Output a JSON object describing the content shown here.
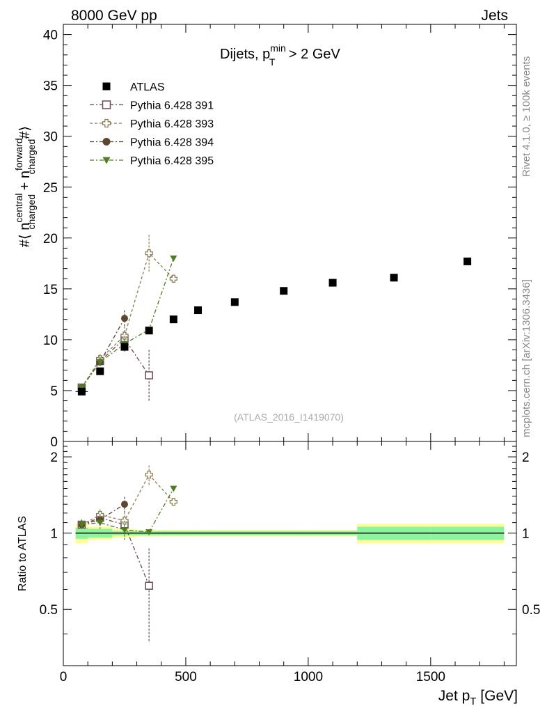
{
  "header": {
    "left": "8000 GeV pp",
    "right": "Jets"
  },
  "side_labels": {
    "rivet": "Rivet 4.1.0, ≥ 100k events",
    "mcplots": "mcplots.cern.ch [arXiv:1306.3436]"
  },
  "chart_data": {
    "type": "scatter",
    "title": "Dijets, p_T^min > 2 GeV",
    "watermark": "(ATLAS_2016_I1419070)",
    "xlabel": "Jet p_T [GeV]",
    "ylabel": "#⟨ n_charged^central + n_charged^forward #⟩",
    "ratio_ylabel": "Ratio to ATLAS",
    "xlim": [
      0,
      1850
    ],
    "ylim": [
      0,
      41
    ],
    "ratio_ylim": [
      0.3,
      2.3
    ],
    "x_ticks": [
      "0",
      "500",
      "1000",
      "1500"
    ],
    "y_ticks": [
      "0",
      "5",
      "10",
      "15",
      "20",
      "25",
      "30",
      "35",
      "40"
    ],
    "ratio_ticks": [
      "0.5",
      "1",
      "2"
    ],
    "legend_position": "top-left",
    "data": {
      "name": "ATLAS",
      "x": [
        75,
        150,
        250,
        350,
        450,
        550,
        700,
        900,
        1100,
        1350,
        1650
      ],
      "xlow": [
        50,
        100,
        200,
        300,
        400,
        500,
        600,
        800,
        1000,
        1200,
        1500
      ],
      "xhigh": [
        100,
        200,
        300,
        400,
        500,
        600,
        800,
        1000,
        1200,
        1500,
        1800
      ],
      "y": [
        4.9,
        6.9,
        9.3,
        10.9,
        12.0,
        12.9,
        13.7,
        14.8,
        15.6,
        16.1,
        17.7
      ],
      "ratio_band_inner": [
        0.05,
        0.04,
        0.02,
        0.02,
        0.02,
        0.02,
        0.02,
        0.02,
        0.02,
        0.06,
        0.06
      ],
      "ratio_band_outer": [
        0.09,
        0.06,
        0.04,
        0.03,
        0.03,
        0.03,
        0.03,
        0.03,
        0.03,
        0.09,
        0.09
      ]
    },
    "series": [
      {
        "name": "Pythia 6.428 391",
        "color": "#6b4856",
        "marker": "open-square",
        "dash": "6,3,2,3",
        "x": [
          75,
          150,
          250,
          350
        ],
        "values": [
          5.3,
          7.9,
          10.1,
          6.5
        ],
        "errors": [
          0.3,
          0.5,
          0.8,
          2.5
        ],
        "ratio": [
          1.08,
          1.15,
          1.08,
          0.62
        ],
        "ratio_errors": [
          0.05,
          0.06,
          0.09,
          0.25
        ]
      },
      {
        "name": "Pythia 6.428 393",
        "color": "#8c7d52",
        "marker": "open-cross",
        "dash": "4,3",
        "x": [
          75,
          150,
          250,
          350,
          450
        ],
        "values": [
          5.3,
          8.1,
          10.4,
          18.5,
          16.0
        ],
        "errors": [
          0.3,
          0.5,
          0.9,
          1.8,
          0.4
        ],
        "ratio": [
          1.08,
          1.18,
          1.12,
          1.7,
          1.33
        ],
        "ratio_errors": [
          0.05,
          0.06,
          0.09,
          0.15,
          0.04
        ]
      },
      {
        "name": "Pythia 6.428 394",
        "color": "#5a4632",
        "marker": "filled-circle",
        "dash": "6,3,2,3",
        "x": [
          75,
          150,
          250
        ],
        "values": [
          5.3,
          7.8,
          12.1
        ],
        "errors": [
          0.3,
          0.5,
          0.8
        ],
        "ratio": [
          1.08,
          1.13,
          1.3
        ],
        "ratio_errors": [
          0.05,
          0.06,
          0.09
        ]
      },
      {
        "name": "Pythia 6.428 395",
        "color": "#4e7d1f",
        "marker": "filled-triangle",
        "dash": "6,3,2,3",
        "x": [
          75,
          150,
          250,
          350,
          450
        ],
        "values": [
          5.3,
          7.8,
          9.6,
          11.0,
          18.0
        ],
        "errors": [
          0.3,
          0.5,
          0.8,
          0.2,
          0.2
        ],
        "ratio": [
          1.08,
          1.1,
          1.03,
          1.01,
          1.5
        ],
        "ratio_errors": [
          0.05,
          0.06,
          0.09,
          0.02,
          0.02
        ]
      }
    ]
  }
}
